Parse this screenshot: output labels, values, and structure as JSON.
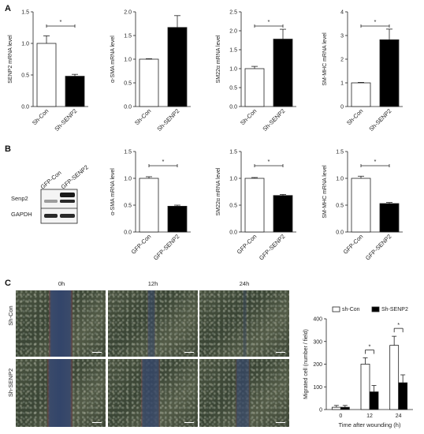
{
  "panels": {
    "A": "A",
    "B": "B",
    "C": "C"
  },
  "colors": {
    "control_fill": "#ffffff",
    "treated_fill": "#000000",
    "axis": "#222222"
  },
  "western_blot": {
    "lanes": [
      "GFP-Con",
      "GFP-SENP2"
    ],
    "rows": [
      "Senp2",
      "GAPDH"
    ]
  },
  "micrographs": {
    "time_labels": [
      "0h",
      "12h",
      "24h"
    ],
    "row_labels": [
      "Sh-Con",
      "Sh-SENP2"
    ]
  },
  "chart_data": [
    {
      "id": "A1",
      "type": "bar",
      "categories": [
        "Sh-Con",
        "Sh-SENP2"
      ],
      "values": [
        1.0,
        0.48
      ],
      "errors": [
        0.12,
        0.03
      ],
      "ylabel": "SENP2 mRNA level",
      "ylim": [
        0,
        1.5
      ],
      "yticks": [
        "0.0",
        "0.5",
        "1.0",
        "1.5"
      ],
      "yticks_values": [
        0,
        0.5,
        1.0,
        1.5
      ],
      "significance": "*"
    },
    {
      "id": "A2",
      "type": "bar",
      "categories": [
        "Sh-Con",
        "Sh-SENP2"
      ],
      "values": [
        1.0,
        1.67
      ],
      "errors": [
        0.01,
        0.25
      ],
      "ylabel": "α-SMA mRNA level",
      "ylim": [
        0,
        2.0
      ],
      "yticks": [
        "0.0",
        "0.5",
        "1.0",
        "1.5",
        "2.0"
      ],
      "yticks_values": [
        0,
        0.5,
        1.0,
        1.5,
        2.0
      ],
      "significance": ""
    },
    {
      "id": "A3",
      "type": "bar",
      "categories": [
        "Sh-Con",
        "Sh-SENP2"
      ],
      "values": [
        1.0,
        1.78
      ],
      "errors": [
        0.06,
        0.26
      ],
      "ylabel": "SM22α mRNA level",
      "ylim": [
        0,
        2.5
      ],
      "yticks": [
        "0.0",
        "0.5",
        "1.0",
        "1.5",
        "2.0",
        "2.5"
      ],
      "yticks_values": [
        0,
        0.5,
        1.0,
        1.5,
        2.0,
        2.5
      ],
      "significance": "*"
    },
    {
      "id": "A4",
      "type": "bar",
      "categories": [
        "Sh-Con",
        "Sh-SENP2"
      ],
      "values": [
        1.0,
        2.82
      ],
      "errors": [
        0.02,
        0.45
      ],
      "ylabel": "SM-MHC mRNA level",
      "ylim": [
        0,
        4
      ],
      "yticks": [
        "0",
        "1",
        "2",
        "3",
        "4"
      ],
      "yticks_values": [
        0,
        1,
        2,
        3,
        4
      ],
      "significance": "*"
    },
    {
      "id": "B1",
      "type": "bar",
      "categories": [
        "GFP-Con",
        "GFP-SENP2"
      ],
      "values": [
        1.0,
        0.48
      ],
      "errors": [
        0.03,
        0.02
      ],
      "ylabel": "α-SMA mRNA level",
      "ylim": [
        0,
        1.5
      ],
      "yticks": [
        "0.0",
        "0.5",
        "1.0",
        "1.5"
      ],
      "yticks_values": [
        0,
        0.5,
        1.0,
        1.5
      ],
      "significance": "*"
    },
    {
      "id": "B2",
      "type": "bar",
      "categories": [
        "GFP-Con",
        "GFP-SENP2"
      ],
      "values": [
        1.0,
        0.68
      ],
      "errors": [
        0.015,
        0.02
      ],
      "ylabel": "SM22α mRNA level",
      "ylim": [
        0,
        1.5
      ],
      "yticks": [
        "0.0",
        "0.5",
        "1.0",
        "1.5"
      ],
      "yticks_values": [
        0,
        0.5,
        1.0,
        1.5
      ],
      "significance": "*"
    },
    {
      "id": "B3",
      "type": "bar",
      "categories": [
        "GFP-Con",
        "GFP-SENP2"
      ],
      "values": [
        1.0,
        0.53
      ],
      "errors": [
        0.04,
        0.02
      ],
      "ylabel": "SM-MHC mRNA level",
      "ylim": [
        0,
        1.5
      ],
      "yticks": [
        "0.0",
        "0.5",
        "1.0",
        "1.5"
      ],
      "yticks_values": [
        0,
        0.5,
        1.0,
        1.5
      ],
      "significance": "*"
    },
    {
      "id": "C1",
      "type": "bar",
      "categories": [
        "0",
        "12",
        "24"
      ],
      "series": [
        {
          "name": "sh-Con",
          "values": [
            10,
            200,
            283
          ],
          "errors": [
            8,
            28,
            40
          ]
        },
        {
          "name": "Sh-SENP2",
          "values": [
            10,
            78,
            118
          ],
          "errors": [
            8,
            28,
            35
          ]
        }
      ],
      "xlabel": "Time after wounding (h)",
      "ylabel": "Migrated cell (number / field)",
      "ylim": [
        0,
        400
      ],
      "yticks": [
        "0",
        "100",
        "200",
        "300",
        "400"
      ],
      "yticks_values": [
        0,
        100,
        200,
        300,
        400
      ],
      "significance": [
        "",
        "*",
        "*"
      ],
      "legend": "top-right"
    }
  ]
}
